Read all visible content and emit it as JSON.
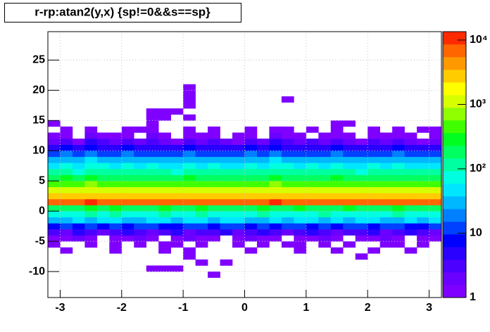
{
  "chart_data": {
    "type": "heatmap",
    "title": "r-rp:atan2(y,x) {sp!=0&&s==sp}",
    "xlim": [
      -3.2,
      3.2
    ],
    "ylim": [
      -14.3,
      29.7
    ],
    "xticks": [
      -3,
      -2,
      -1,
      0,
      1,
      2,
      3
    ],
    "yticks": [
      -10,
      -5,
      0,
      5,
      10,
      15,
      20,
      25
    ],
    "zlim": [
      1,
      13500
    ],
    "zlog": true,
    "zticks": [
      1,
      10,
      {
        "value": 100,
        "label": "10²"
      },
      {
        "value": 1000,
        "label": "10³"
      },
      {
        "value": 10000,
        "label": "10⁴"
      }
    ],
    "grid": true,
    "palette": [
      "#7f00ff",
      "#6a00ff",
      "#4c00ff",
      "#2a00ff",
      "#0000ff",
      "#0040ff",
      "#0080ff",
      "#00b8ff",
      "#00e6ff",
      "#00ffe0",
      "#00ffa0",
      "#00ff60",
      "#00ff20",
      "#40ff00",
      "#90ff00",
      "#d8ff00",
      "#ffff00",
      "#ffcc00",
      "#ff9900",
      "#ff6600",
      "#ff2a00"
    ],
    "xbins": [
      -3.2,
      -3.0,
      -2.8,
      -2.6,
      -2.4,
      -2.2,
      -2.0,
      -1.8,
      -1.6,
      -1.4,
      -1.2,
      -1.0,
      -0.8,
      -0.6,
      -0.4,
      -0.2,
      0,
      0.2,
      0.4,
      0.6,
      0.8,
      1.0,
      1.2,
      1.4,
      1.6,
      1.8,
      2.0,
      2.2,
      2.4,
      2.6,
      2.8,
      3.0,
      3.2
    ],
    "ybins": [
      -12,
      -11,
      -10,
      -9,
      -8,
      -7,
      -6,
      -5,
      -4,
      -3,
      -2,
      -1,
      0,
      1,
      2,
      3,
      4,
      5,
      6,
      7,
      8,
      9,
      10,
      11,
      12,
      13,
      14,
      15,
      16,
      17,
      18,
      19,
      20,
      21
    ],
    "z": [
      [
        0,
        0,
        0,
        0,
        0,
        0,
        0,
        0,
        0,
        0,
        0,
        0,
        0,
        0,
        0,
        0,
        0,
        0,
        0,
        0,
        0,
        0,
        0,
        0,
        0,
        0,
        0,
        0,
        0,
        0,
        0,
        0
      ],
      [
        0,
        0,
        0,
        0,
        0,
        0,
        0,
        0,
        0,
        0,
        0,
        0,
        0,
        1,
        0,
        0,
        0,
        0,
        0,
        0,
        0,
        0,
        0,
        0,
        0,
        0,
        0,
        0,
        0,
        0,
        0,
        0
      ],
      [
        0,
        0,
        0,
        0,
        0,
        0,
        0,
        0,
        1,
        1,
        1,
        0,
        0,
        0,
        0,
        0,
        0,
        0,
        0,
        0,
        0,
        0,
        0,
        0,
        0,
        0,
        0,
        0,
        0,
        0,
        0,
        0
      ],
      [
        0,
        0,
        0,
        0,
        0,
        0,
        0,
        0,
        0,
        0,
        0,
        0,
        1,
        0,
        1,
        0,
        0,
        0,
        0,
        0,
        0,
        0,
        0,
        0,
        0,
        0,
        0,
        0,
        0,
        0,
        0,
        0
      ],
      [
        0,
        0,
        0,
        0,
        0,
        0,
        0,
        0,
        0,
        0,
        0,
        1,
        0,
        0,
        0,
        0,
        0,
        0,
        0,
        0,
        0,
        0,
        0,
        0,
        0,
        1,
        0,
        0,
        0,
        0,
        0,
        0
      ],
      [
        0,
        1,
        0,
        0,
        0,
        1,
        0,
        0,
        0,
        1,
        0,
        1,
        0,
        0,
        0,
        0,
        1,
        0,
        0,
        0,
        1,
        0,
        0,
        1,
        0,
        0,
        1,
        0,
        0,
        1,
        0,
        0
      ],
      [
        1,
        0,
        0,
        1,
        0,
        1,
        0,
        1,
        0,
        1,
        1,
        0,
        1,
        0,
        0,
        1,
        0,
        1,
        0,
        1,
        1,
        0,
        1,
        0,
        1,
        0,
        0,
        1,
        1,
        0,
        1,
        0
      ],
      [
        1,
        1,
        2,
        1,
        0,
        1,
        1,
        2,
        1,
        0,
        1,
        2,
        1,
        1,
        0,
        1,
        2,
        1,
        1,
        0,
        1,
        1,
        2,
        1,
        0,
        1,
        1,
        2,
        1,
        0,
        1,
        1
      ],
      [
        3,
        2,
        4,
        3,
        2,
        3,
        4,
        3,
        2,
        3,
        4,
        2,
        3,
        3,
        4,
        2,
        3,
        4,
        3,
        2,
        3,
        4,
        3,
        2,
        3,
        3,
        4,
        2,
        3,
        4,
        3,
        2
      ],
      [
        8,
        10,
        9,
        12,
        8,
        11,
        9,
        10,
        12,
        8,
        9,
        11,
        10,
        9,
        12,
        10,
        8,
        11,
        9,
        12,
        10,
        9,
        11,
        8,
        10,
        12,
        9,
        11,
        10,
        8,
        9,
        11
      ],
      [
        30,
        35,
        40,
        32,
        38,
        45,
        36,
        33,
        40,
        42,
        35,
        38,
        44,
        36,
        39,
        41,
        33,
        37,
        43,
        35,
        40,
        38,
        34,
        42,
        36,
        39,
        41,
        35,
        37,
        40,
        33,
        38
      ],
      [
        80,
        90,
        75,
        95,
        85,
        100,
        88,
        78,
        92,
        97,
        84,
        80,
        93,
        87,
        90,
        82,
        79,
        96,
        88,
        85,
        91,
        83,
        94,
        86,
        80,
        92,
        89,
        84,
        95,
        81,
        87,
        90
      ],
      [
        200,
        220,
        190,
        240,
        210,
        230,
        200,
        185,
        225,
        245,
        205,
        215,
        235,
        195,
        220,
        210,
        190,
        240,
        215,
        200,
        230,
        205,
        220,
        195,
        235,
        210,
        200,
        225,
        240,
        190,
        215,
        205
      ],
      [
        7500,
        8200,
        7800,
        8600,
        8000,
        7400,
        8300,
        7900,
        8500,
        8100,
        7600,
        8400,
        7700,
        8200,
        8000,
        7500,
        8300,
        7900,
        8600,
        8100,
        7700,
        8400,
        7800,
        8200,
        8000,
        7600,
        8500,
        7900,
        8300,
        8100,
        7500,
        8000
      ],
      [
        3000,
        3200,
        2900,
        3400,
        3100,
        2800,
        3300,
        3000,
        3200,
        3100,
        2900,
        3300,
        3000,
        3200,
        3100,
        2900,
        3300,
        3000,
        3400,
        3100,
        2900,
        3200,
        3000,
        3300,
        3100,
        2800,
        3200,
        3000,
        3300,
        3100,
        2900,
        3000
      ],
      [
        1000,
        1100,
        950,
        1150,
        1050,
        980,
        1120,
        1000,
        1080,
        1030,
        960,
        1100,
        1010,
        1070,
        1040,
        970,
        1110,
        1000,
        1150,
        1040,
        980,
        1090,
        1010,
        1120,
        1050,
        950,
        1080,
        1000,
        1100,
        1030,
        970,
        1020
      ],
      [
        500,
        550,
        470,
        580,
        520,
        480,
        560,
        500,
        540,
        510,
        470,
        560,
        500,
        530,
        520,
        480,
        550,
        500,
        580,
        520,
        490,
        540,
        500,
        560,
        520,
        470,
        540,
        500,
        550,
        510,
        480,
        510
      ],
      [
        200,
        230,
        190,
        240,
        210,
        195,
        225,
        200,
        220,
        205,
        185,
        230,
        200,
        215,
        210,
        190,
        225,
        200,
        240,
        210,
        195,
        220,
        200,
        230,
        210,
        185,
        220,
        200,
        225,
        205,
        190,
        205
      ],
      [
        100,
        120,
        90,
        125,
        110,
        95,
        115,
        100,
        110,
        105,
        90,
        120,
        100,
        110,
        105,
        95,
        115,
        100,
        125,
        110,
        95,
        110,
        100,
        120,
        105,
        90,
        110,
        100,
        115,
        105,
        95,
        100
      ],
      [
        55,
        65,
        50,
        70,
        60,
        52,
        62,
        55,
        60,
        58,
        48,
        66,
        54,
        60,
        58,
        50,
        63,
        55,
        70,
        60,
        52,
        60,
        55,
        66,
        58,
        48,
        60,
        54,
        62,
        58,
        50,
        56
      ],
      [
        28,
        35,
        25,
        38,
        32,
        27,
        33,
        28,
        31,
        30,
        24,
        36,
        28,
        31,
        30,
        26,
        34,
        28,
        38,
        32,
        27,
        31,
        28,
        35,
        30,
        24,
        31,
        28,
        33,
        30,
        26,
        29
      ],
      [
        13,
        16,
        12,
        18,
        15,
        13,
        16,
        14,
        15,
        14,
        11,
        17,
        13,
        15,
        14,
        12,
        16,
        13,
        18,
        15,
        13,
        15,
        14,
        17,
        14,
        11,
        15,
        13,
        16,
        14,
        12,
        14
      ],
      [
        5,
        7,
        4,
        8,
        6,
        5,
        7,
        6,
        6,
        5,
        4,
        7,
        5,
        6,
        6,
        5,
        7,
        5,
        8,
        6,
        5,
        6,
        5,
        7,
        6,
        4,
        6,
        5,
        7,
        6,
        5,
        6
      ],
      [
        2,
        3,
        1,
        4,
        3,
        2,
        3,
        2,
        3,
        2,
        1,
        3,
        2,
        3,
        2,
        1,
        3,
        2,
        4,
        3,
        2,
        3,
        2,
        3,
        2,
        1,
        3,
        2,
        3,
        2,
        1,
        2
      ],
      [
        1,
        1,
        0,
        2,
        1,
        1,
        1,
        0,
        2,
        1,
        0,
        1,
        1,
        1,
        0,
        1,
        1,
        0,
        2,
        1,
        1,
        0,
        1,
        1,
        1,
        0,
        1,
        1,
        1,
        1,
        0,
        1
      ],
      [
        0,
        1,
        0,
        1,
        0,
        0,
        1,
        1,
        1,
        0,
        0,
        1,
        0,
        1,
        0,
        0,
        1,
        0,
        1,
        1,
        0,
        1,
        0,
        1,
        0,
        0,
        1,
        0,
        1,
        0,
        1,
        1
      ],
      [
        1,
        0,
        0,
        0,
        0,
        0,
        0,
        0,
        1,
        0,
        0,
        0,
        0,
        0,
        0,
        0,
        0,
        0,
        0,
        0,
        0,
        0,
        0,
        1,
        1,
        0,
        0,
        0,
        0,
        0,
        0,
        0
      ],
      [
        0,
        0,
        0,
        0,
        0,
        0,
        0,
        0,
        1,
        1,
        0,
        1,
        0,
        0,
        0,
        0,
        0,
        0,
        0,
        0,
        0,
        0,
        0,
        0,
        0,
        0,
        0,
        0,
        0,
        0,
        0,
        0
      ],
      [
        0,
        0,
        0,
        0,
        0,
        0,
        0,
        0,
        1,
        1,
        1,
        0,
        0,
        0,
        0,
        0,
        0,
        0,
        0,
        0,
        0,
        0,
        0,
        0,
        0,
        0,
        0,
        0,
        0,
        0,
        0,
        0
      ],
      [
        0,
        0,
        0,
        0,
        0,
        0,
        0,
        0,
        0,
        0,
        0,
        1,
        0,
        0,
        0,
        0,
        0,
        0,
        0,
        0,
        0,
        0,
        0,
        0,
        0,
        0,
        0,
        0,
        0,
        0,
        0,
        0
      ],
      [
        0,
        0,
        0,
        0,
        0,
        0,
        0,
        0,
        0,
        0,
        0,
        1,
        0,
        0,
        0,
        0,
        0,
        0,
        0,
        1,
        0,
        0,
        0,
        0,
        0,
        0,
        0,
        0,
        0,
        0,
        0,
        0
      ],
      [
        0,
        0,
        0,
        0,
        0,
        0,
        0,
        0,
        0,
        0,
        0,
        1,
        0,
        0,
        0,
        0,
        0,
        0,
        0,
        0,
        0,
        0,
        0,
        0,
        0,
        0,
        0,
        0,
        0,
        0,
        0,
        0
      ],
      [
        0,
        0,
        0,
        0,
        0,
        0,
        0,
        0,
        0,
        0,
        0,
        1,
        0,
        0,
        0,
        0,
        0,
        0,
        0,
        0,
        0,
        0,
        0,
        0,
        0,
        0,
        0,
        0,
        0,
        0,
        0,
        0
      ]
    ]
  }
}
